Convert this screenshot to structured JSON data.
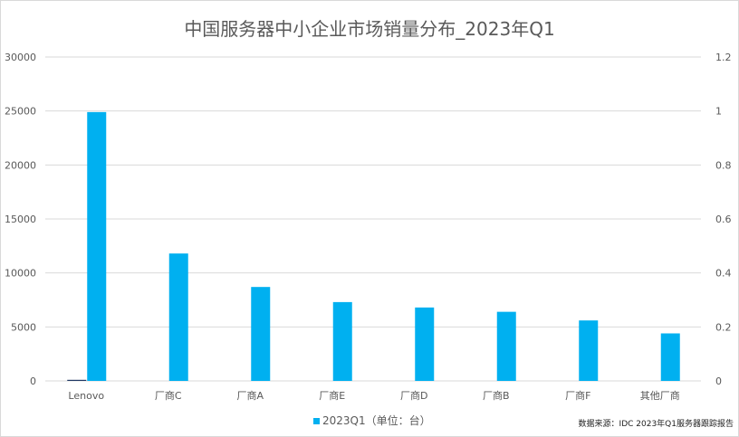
{
  "chart_data": {
    "type": "bar",
    "title": "中国服务器中小企业市场销量分布_2023年Q1",
    "categories": [
      "Lenovo",
      "厂商C",
      "厂商A",
      "厂商E",
      "厂商D",
      "厂商B",
      "厂商F",
      "其他厂商"
    ],
    "series": [
      {
        "name": "",
        "axis": "left",
        "color": "#203864",
        "values": [
          100,
          0,
          0,
          0,
          0,
          0,
          0,
          0
        ]
      },
      {
        "name": "2023Q1（单位：台）",
        "axis": "left",
        "color": "#00b0f0",
        "values": [
          24900,
          11800,
          8700,
          7300,
          6800,
          6400,
          5600,
          4400
        ]
      }
    ],
    "ylim": [
      0,
      30000
    ],
    "yticks": [
      "0",
      "5000",
      "10000",
      "15000",
      "20000",
      "25000",
      "30000"
    ],
    "y2lim": [
      0,
      1.2
    ],
    "y2ticks": [
      "0",
      "0.2",
      "0.4",
      "0.6",
      "0.8",
      "1",
      "1.2"
    ],
    "grid": true,
    "legend": "bottom",
    "source": "数据来源：IDC 2023年Q1服务器跟踪报告"
  }
}
